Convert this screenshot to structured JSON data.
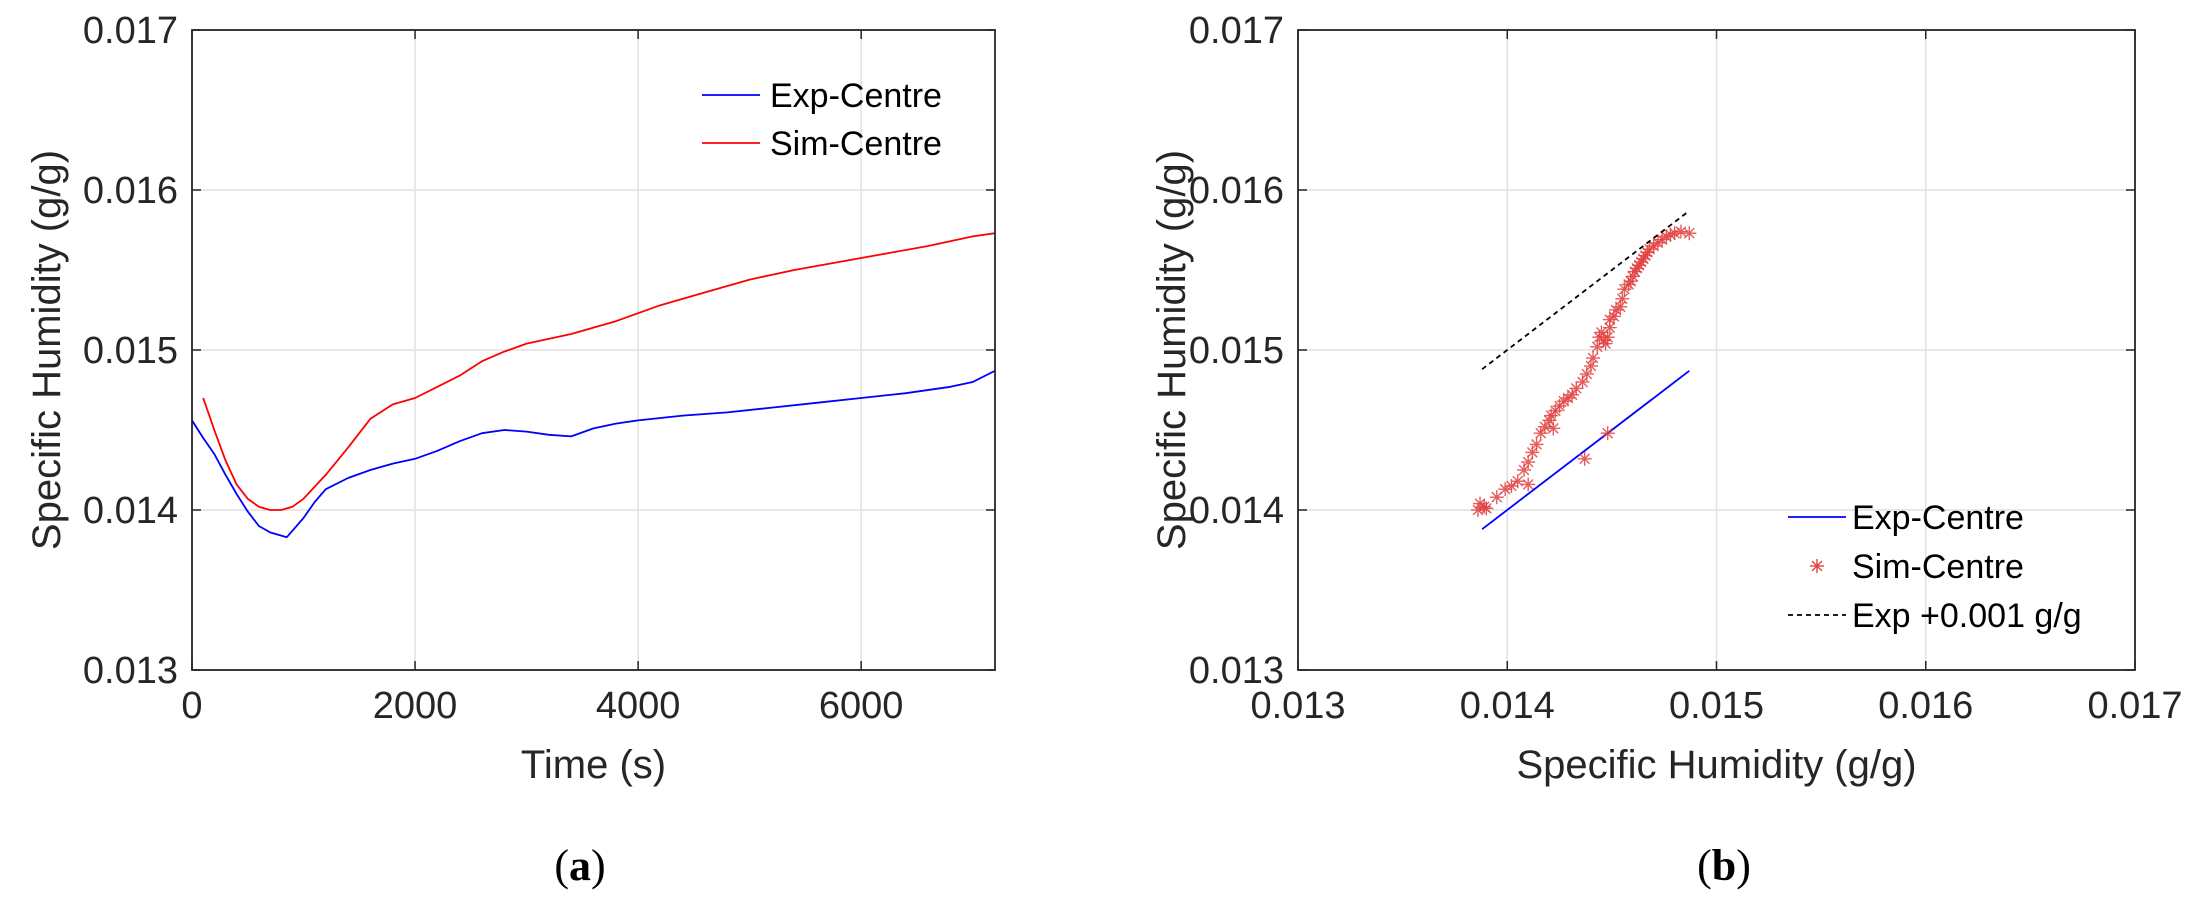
{
  "chart_data": [
    {
      "type": "line",
      "panel_label": "a",
      "xlabel": "Time (s)",
      "ylabel": "Specific Humidity (g/g)",
      "xlim": [
        0,
        7200
      ],
      "ylim": [
        0.013,
        0.017
      ],
      "xticks": [
        "0",
        "2000",
        "4000",
        "6000"
      ],
      "yticks": [
        "0.013",
        "0.014",
        "0.015",
        "0.016",
        "0.017"
      ],
      "grid": true,
      "legend_position": "top-right",
      "series": [
        {
          "name": "Exp-Centre",
          "color": "#0000ff",
          "x": [
            0,
            100,
            200,
            300,
            400,
            500,
            600,
            700,
            800,
            850,
            900,
            1000,
            1100,
            1200,
            1400,
            1600,
            1800,
            2000,
            2200,
            2400,
            2600,
            2800,
            3000,
            3200,
            3400,
            3600,
            3800,
            4000,
            4400,
            4800,
            5200,
            5600,
            6000,
            6400,
            6800,
            7000,
            7200
          ],
          "y": [
            0.01456,
            0.01445,
            0.01435,
            0.01422,
            0.0141,
            0.01399,
            0.0139,
            0.01386,
            0.01384,
            0.01383,
            0.01387,
            0.01395,
            0.01405,
            0.01413,
            0.0142,
            0.01425,
            0.01429,
            0.01432,
            0.01437,
            0.01443,
            0.01448,
            0.0145,
            0.01449,
            0.01447,
            0.01446,
            0.01451,
            0.01454,
            0.01456,
            0.01459,
            0.01461,
            0.01464,
            0.01467,
            0.0147,
            0.01473,
            0.01477,
            0.0148,
            0.01487
          ]
        },
        {
          "name": "Sim-Centre",
          "color": "#ff0000",
          "x": [
            100,
            200,
            300,
            400,
            500,
            600,
            700,
            800,
            900,
            1000,
            1200,
            1400,
            1600,
            1800,
            2000,
            2200,
            2400,
            2600,
            2800,
            3000,
            3400,
            3800,
            4200,
            4600,
            5000,
            5400,
            5800,
            6200,
            6600,
            7000,
            7200
          ],
          "y": [
            0.0147,
            0.0145,
            0.01431,
            0.01416,
            0.01407,
            0.01402,
            0.014,
            0.014,
            0.01402,
            0.01407,
            0.01422,
            0.01439,
            0.01457,
            0.01466,
            0.0147,
            0.01477,
            0.01484,
            0.01493,
            0.01499,
            0.01504,
            0.0151,
            0.01518,
            0.01528,
            0.01536,
            0.01544,
            0.0155,
            0.01555,
            0.0156,
            0.01565,
            0.01571,
            0.01573
          ]
        }
      ]
    },
    {
      "type": "scatter",
      "panel_label": "b",
      "xlabel": "Specific Humidity (g/g)",
      "ylabel": "Specific Humidity (g/g)",
      "xlim": [
        0.013,
        0.017
      ],
      "ylim": [
        0.013,
        0.017
      ],
      "xticks": [
        "0.013",
        "0.014",
        "0.015",
        "0.016",
        "0.017"
      ],
      "yticks": [
        "0.013",
        "0.014",
        "0.015",
        "0.016",
        "0.017"
      ],
      "grid": true,
      "legend_position": "bottom-right",
      "series": [
        {
          "name": "Exp-Centre",
          "style": "line",
          "color": "#0000ff",
          "x": [
            0.01388,
            0.01487
          ],
          "y": [
            0.01388,
            0.01487
          ]
        },
        {
          "name": "Sim-Centre",
          "style": "marker",
          "color": "#e04040",
          "x": [
            0.01386,
            0.01387,
            0.01389,
            0.0139,
            0.01395,
            0.01399,
            0.01402,
            0.01405,
            0.01408,
            0.0141,
            0.01412,
            0.01414,
            0.01416,
            0.01418,
            0.0142,
            0.01421,
            0.01423,
            0.01425,
            0.01427,
            0.01429,
            0.01431,
            0.01433,
            0.01436,
            0.01438,
            0.0144,
            0.01441,
            0.01443,
            0.01444,
            0.01445,
            0.01446,
            0.01447,
            0.01448,
            0.01449,
            0.01449,
            0.01451,
            0.01452,
            0.01454,
            0.01455,
            0.01456,
            0.01458,
            0.01459,
            0.0146,
            0.01461,
            0.01462,
            0.01463,
            0.01464,
            0.01465,
            0.01466,
            0.01467,
            0.01468,
            0.0147,
            0.01472,
            0.01474,
            0.01476,
            0.01478,
            0.0148,
            0.01483,
            0.01487,
            0.01437,
            0.01448,
            0.0141,
            0.01422
          ],
          "y": [
            0.014,
            0.01404,
            0.01402,
            0.01401,
            0.01408,
            0.01413,
            0.01415,
            0.01418,
            0.01425,
            0.0143,
            0.01436,
            0.01441,
            0.01448,
            0.01452,
            0.01456,
            0.01459,
            0.01462,
            0.01465,
            0.01468,
            0.0147,
            0.01472,
            0.01476,
            0.0148,
            0.01485,
            0.0149,
            0.01495,
            0.01502,
            0.01508,
            0.01511,
            0.01506,
            0.01504,
            0.01508,
            0.01514,
            0.01519,
            0.01521,
            0.01525,
            0.01527,
            0.01532,
            0.01538,
            0.01541,
            0.01543,
            0.01546,
            0.01549,
            0.01551,
            0.01553,
            0.01555,
            0.01557,
            0.01559,
            0.01561,
            0.01563,
            0.01565,
            0.01567,
            0.01569,
            0.01571,
            0.01572,
            0.01573,
            0.01574,
            0.01573,
            0.01432,
            0.01448,
            0.01416,
            0.01451
          ]
        },
        {
          "name": "Exp +0.001 g/g",
          "style": "dashed",
          "color": "#000000",
          "x": [
            0.01388,
            0.01487
          ],
          "y": [
            0.01488,
            0.01587
          ]
        }
      ]
    }
  ]
}
